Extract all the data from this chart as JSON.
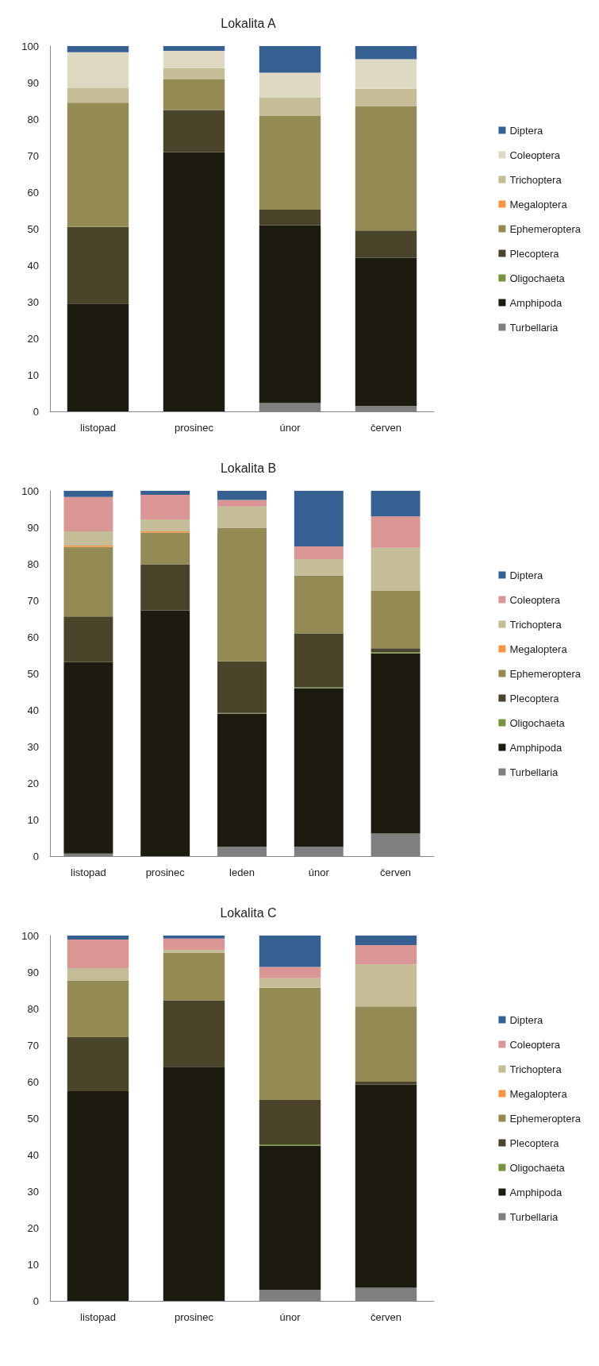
{
  "chart_data": [
    {
      "type": "bar",
      "title": "Lokalita A",
      "stacked": true,
      "categories": [
        "listopad",
        "prosinec",
        "únor",
        "červen"
      ],
      "ylim": [
        0,
        100
      ],
      "yticks": [
        0,
        10,
        20,
        30,
        40,
        50,
        60,
        70,
        80,
        90,
        100
      ],
      "grid": false,
      "legend": "right",
      "series": [
        {
          "name": "Turbellaria",
          "color": "#7f7f7f",
          "values": [
            0,
            0,
            2.3,
            1.5
          ]
        },
        {
          "name": "Amphipoda",
          "color": "#1d1b10",
          "values": [
            29.5,
            71,
            48.7,
            40.5
          ]
        },
        {
          "name": "Oligochaeta",
          "color": "#77933c",
          "values": [
            0,
            0,
            0,
            0
          ]
        },
        {
          "name": "Plecoptera",
          "color": "#4a452a",
          "values": [
            21,
            11.5,
            4.2,
            7.5
          ]
        },
        {
          "name": "Ephemeroptera",
          "color": "#948a54",
          "values": [
            34,
            8.5,
            25.8,
            34
          ]
        },
        {
          "name": "Megaloptera",
          "color": "#f79646",
          "values": [
            0,
            0,
            0,
            0
          ]
        },
        {
          "name": "Trichoptera",
          "color": "#c4bd97",
          "values": [
            4,
            3,
            5,
            4.8
          ]
        },
        {
          "name": "Coleoptera",
          "color": "#ddd9c3",
          "values": [
            9.8,
            4.7,
            6.7,
            8.1
          ]
        },
        {
          "name": "Diptera",
          "color": "#366092",
          "values": [
            1.7,
            1.3,
            7.3,
            3.6
          ]
        }
      ]
    },
    {
      "type": "bar",
      "title": "Lokalita B",
      "stacked": true,
      "categories": [
        "listopad",
        "prosinec",
        "leden",
        "únor",
        "červen"
      ],
      "ylim": [
        0,
        100
      ],
      "yticks": [
        0,
        10,
        20,
        30,
        40,
        50,
        60,
        70,
        80,
        90,
        100
      ],
      "grid": false,
      "legend": "right",
      "series": [
        {
          "name": "Turbellaria",
          "color": "#7f7f7f",
          "values": [
            0.7,
            0,
            2.6,
            2.6,
            6.2
          ]
        },
        {
          "name": "Amphipoda",
          "color": "#1d1b10",
          "values": [
            52.4,
            67.3,
            36.4,
            43.4,
            49.3
          ]
        },
        {
          "name": "Oligochaeta",
          "color": "#77933c",
          "values": [
            0,
            0,
            0.2,
            0.2,
            0.3
          ]
        },
        {
          "name": "Plecoptera",
          "color": "#4a452a",
          "values": [
            12.5,
            12.6,
            14.1,
            14.8,
            1.1
          ]
        },
        {
          "name": "Ephemeroptera",
          "color": "#948a54",
          "values": [
            19,
            8.7,
            36.6,
            15.8,
            15.8
          ]
        },
        {
          "name": "Megaloptera",
          "color": "#f79646",
          "values": [
            0.4,
            0.3,
            0,
            0,
            0
          ]
        },
        {
          "name": "Trichoptera",
          "color": "#c4bd97",
          "values": [
            3.9,
            3.3,
            5.8,
            4.5,
            11.7
          ]
        },
        {
          "name": "Coleoptera",
          "color": "#d99694",
          "values": [
            9.4,
            6.7,
            1.8,
            3.5,
            8.6
          ]
        },
        {
          "name": "Diptera",
          "color": "#366092",
          "values": [
            1.7,
            1.1,
            2.5,
            15.2,
            7
          ]
        }
      ]
    },
    {
      "type": "bar",
      "title": "Lokalita C",
      "stacked": true,
      "categories": [
        "listopad",
        "prosinec",
        "únor",
        "červen"
      ],
      "ylim": [
        0,
        100
      ],
      "yticks": [
        0,
        10,
        20,
        30,
        40,
        50,
        60,
        70,
        80,
        90,
        100
      ],
      "grid": false,
      "legend": "right",
      "series": [
        {
          "name": "Turbellaria",
          "color": "#7f7f7f",
          "values": [
            0,
            0,
            3,
            3.6
          ]
        },
        {
          "name": "Amphipoda",
          "color": "#1d1b10",
          "values": [
            57.4,
            64.1,
            39.5,
            55.6
          ]
        },
        {
          "name": "Oligochaeta",
          "color": "#77933c",
          "values": [
            0,
            0,
            0.3,
            0
          ]
        },
        {
          "name": "Plecoptera",
          "color": "#4a452a",
          "values": [
            14.8,
            18.2,
            12.2,
            0.8
          ]
        },
        {
          "name": "Ephemeroptera",
          "color": "#948a54",
          "values": [
            15.5,
            12.9,
            30.7,
            20.6
          ]
        },
        {
          "name": "Megaloptera",
          "color": "#f79646",
          "values": [
            0,
            0,
            0,
            0
          ]
        },
        {
          "name": "Trichoptera",
          "color": "#c4bd97",
          "values": [
            3.4,
            0.9,
            2.6,
            11.5
          ]
        },
        {
          "name": "Coleoptera",
          "color": "#d99694",
          "values": [
            7.8,
            3.1,
            3.1,
            5.3
          ]
        },
        {
          "name": "Diptera",
          "color": "#366092",
          "values": [
            1.1,
            0.8,
            8.6,
            2.6
          ]
        }
      ]
    }
  ]
}
